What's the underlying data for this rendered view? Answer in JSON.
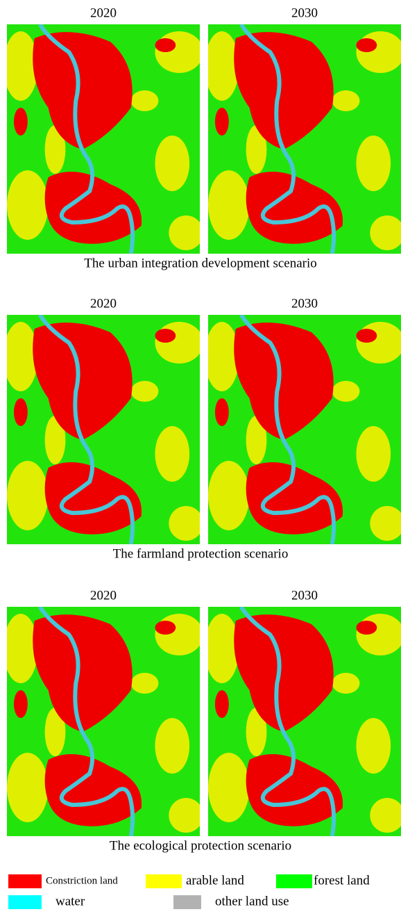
{
  "panels": [
    {
      "years": [
        "2020",
        "2030"
      ],
      "caption": "The urban integration development scenario"
    },
    {
      "years": [
        "2020",
        "2030"
      ],
      "caption": "The farmland protection scenario"
    },
    {
      "years": [
        "2020",
        "2030"
      ],
      "caption": "The ecological protection scenario"
    }
  ],
  "legend": [
    {
      "label": "Constriction land",
      "color": "#ff0000"
    },
    {
      "label": "arable land",
      "color": "#ffff00"
    },
    {
      "label": "forest land",
      "color": "#00ff00"
    },
    {
      "label": "water",
      "color": "#00ffff"
    },
    {
      "label": "other land use",
      "color": "#b2b2b2"
    }
  ]
}
